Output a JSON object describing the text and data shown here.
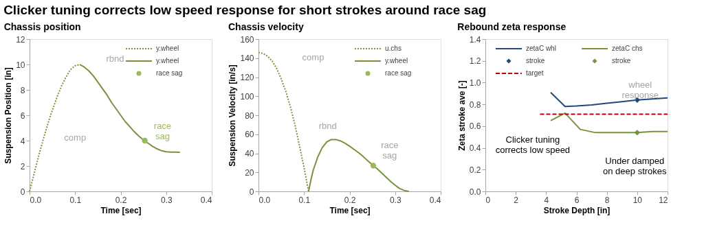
{
  "chart_data": [
    {
      "type": "other",
      "title": "Clicker tuning corrects low speed response for short strokes around race sag"
    },
    {
      "type": "line",
      "title": "Chassis position",
      "xlabel": "Time [sec]",
      "ylabel": "Suspension Position [in]",
      "xlim": [
        0.0,
        0.4
      ],
      "xticks": [
        {
          "value": 0,
          "label": "0.0"
        },
        0.1,
        0.2,
        0.3,
        0.4
      ],
      "ylim": [
        0,
        12
      ],
      "yticks": [
        0,
        2,
        4,
        6,
        8,
        10,
        12
      ],
      "grid": false,
      "legend": "top right",
      "series": [
        {
          "name": "y.wheel",
          "type": "line",
          "line_style": "dotted",
          "marker": "none",
          "color": "#77933c",
          "x": [
            0,
            0.01,
            0.02,
            0.03,
            0.04,
            0.05,
            0.06,
            0.07,
            0.08,
            0.09,
            0.1,
            0.11
          ],
          "values": [
            0,
            1.4,
            2.8,
            4.1,
            5.3,
            6.4,
            7.4,
            8.3,
            9.0,
            9.6,
            9.9,
            10.0
          ]
        },
        {
          "name": "y.wheel",
          "type": "line",
          "line_style": "solid",
          "marker": "none",
          "color": "#77933c",
          "x": [
            0.11,
            0.12,
            0.13,
            0.14,
            0.15,
            0.16,
            0.17,
            0.18,
            0.19,
            0.2,
            0.21,
            0.22,
            0.23,
            0.24,
            0.25,
            0.26,
            0.27,
            0.28,
            0.29,
            0.3,
            0.31,
            0.33
          ],
          "values": [
            10.0,
            9.8,
            9.5,
            9.1,
            8.6,
            8.1,
            7.6,
            7.0,
            6.5,
            6.0,
            5.5,
            5.1,
            4.7,
            4.35,
            4.05,
            3.8,
            3.55,
            3.35,
            3.2,
            3.12,
            3.1,
            3.08
          ]
        },
        {
          "name": "race sag",
          "type": "scatter",
          "marker": "circle",
          "color": "#9bbb59",
          "x": [
            0.253
          ],
          "values": [
            4.0
          ]
        }
      ],
      "annotations": [
        "rbnd",
        "comp",
        "race\nsag"
      ]
    },
    {
      "type": "line",
      "title": "Chassis velocity",
      "xlabel": "Time [sec]",
      "ylabel": "Suspension Velocity [in/s]",
      "xlim": [
        0.0,
        0.4
      ],
      "xticks": [
        {
          "value": 0,
          "label": "0.0"
        },
        0.1,
        0.2,
        0.3,
        0.4
      ],
      "ylim": [
        0,
        160
      ],
      "yticks": [
        0,
        20,
        40,
        60,
        80,
        100,
        120,
        140,
        160
      ],
      "grid": false,
      "legend": "top right",
      "series": [
        {
          "name": "u.chs",
          "type": "line",
          "line_style": "dotted",
          "marker": "none",
          "color": "#77933c",
          "x": [
            0,
            0.01,
            0.02,
            0.03,
            0.04,
            0.05,
            0.06,
            0.07,
            0.08,
            0.09,
            0.1,
            0.11
          ],
          "values": [
            146,
            145,
            142,
            137,
            129,
            118,
            105,
            89,
            70,
            48,
            25,
            0
          ]
        },
        {
          "name": "y.wheel",
          "type": "line",
          "line_style": "solid",
          "marker": "none",
          "color": "#77933c",
          "x": [
            0.11,
            0.115,
            0.12,
            0.13,
            0.14,
            0.15,
            0.16,
            0.17,
            0.18,
            0.19,
            0.2,
            0.21,
            0.22,
            0.23,
            0.24,
            0.25,
            0.26,
            0.27,
            0.28,
            0.29,
            0.3,
            0.31,
            0.32,
            0.33
          ],
          "values": [
            0,
            12,
            22,
            36,
            46,
            52,
            54.5,
            54.5,
            53,
            50.5,
            47.5,
            44,
            40.5,
            36.5,
            32,
            28,
            24,
            19.5,
            15,
            10.5,
            6.5,
            3,
            1,
            0
          ]
        },
        {
          "name": "race sag",
          "type": "scatter",
          "marker": "circle",
          "color": "#9bbb59",
          "x": [
            0.252
          ],
          "values": [
            27
          ]
        }
      ],
      "annotations": [
        "comp",
        "rbnd",
        "race\nsag"
      ]
    },
    {
      "type": "line",
      "title": "Rebound zeta response",
      "xlabel": "Stroke Depth [in]",
      "ylabel": "Zeta stroke ave [-]",
      "xlim": [
        0,
        12
      ],
      "xticks": [
        0,
        2,
        4,
        6,
        8,
        10,
        12
      ],
      "ylim": [
        0.0,
        1.4
      ],
      "yticks": [
        {
          "value": 0,
          "label": "0.0"
        },
        0.2,
        0.4,
        0.6,
        0.8,
        {
          "value": 1,
          "label": "1.0"
        },
        1.2,
        1.4
      ],
      "grid": false,
      "legend": "top",
      "series": [
        {
          "name": "zetaC whl",
          "type": "line",
          "line_style": "solid",
          "marker": "none",
          "color": "#1f497d",
          "x": [
            4.3,
            5.25,
            6,
            7,
            8,
            9,
            10,
            11,
            12
          ],
          "values": [
            0.91,
            0.78,
            0.785,
            0.795,
            0.81,
            0.825,
            0.84,
            0.85,
            0.86
          ]
        },
        {
          "name": "zetaC chs",
          "type": "line",
          "line_style": "solid",
          "marker": "none",
          "color": "#77933c",
          "x": [
            4.3,
            5.25,
            6.25,
            7.25,
            8,
            9,
            10,
            11,
            12
          ],
          "values": [
            0.65,
            0.72,
            0.57,
            0.54,
            0.54,
            0.54,
            0.54,
            0.55,
            0.55
          ]
        },
        {
          "name": "stroke",
          "type": "scatter",
          "marker": "diamond",
          "color": "#1f497d",
          "x": [
            10
          ],
          "values": [
            0.84
          ]
        },
        {
          "name": "stroke",
          "type": "scatter",
          "marker": "diamond",
          "color": "#77933c",
          "x": [
            10
          ],
          "values": [
            0.54
          ]
        },
        {
          "name": "target",
          "type": "line",
          "line_style": "dashed",
          "marker": "none",
          "color": "#c00000",
          "x": [
            3.6,
            12
          ],
          "values": [
            0.71,
            0.71
          ]
        }
      ],
      "annotations": [
        "wheel\nresponse",
        "Clicker tuning\ncorrects low speed",
        "Under damped\non deep strokes"
      ]
    }
  ]
}
